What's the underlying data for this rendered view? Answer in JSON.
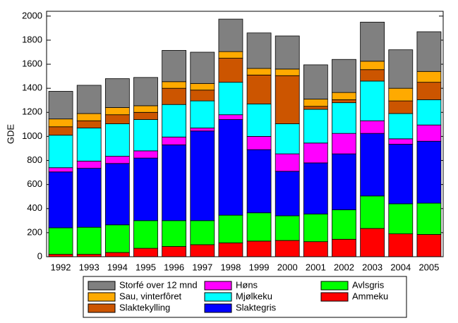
{
  "chart_data": {
    "type": "stacked_bar",
    "y_label": "GDE",
    "categories": [
      "1992",
      "1993",
      "1994",
      "1995",
      "1996",
      "1997",
      "1998",
      "1999",
      "2000",
      "2001",
      "2002",
      "2003",
      "2004",
      "2005"
    ],
    "series": [
      {
        "name": "Ammeku",
        "color": "#ff0000",
        "values": [
          20,
          20,
          35,
          70,
          85,
          100,
          115,
          130,
          135,
          125,
          145,
          235,
          190,
          185
        ]
      },
      {
        "name": "Avlsgris",
        "color": "#00ff00",
        "values": [
          220,
          225,
          230,
          230,
          215,
          200,
          230,
          235,
          205,
          230,
          245,
          270,
          250,
          260
        ]
      },
      {
        "name": "Slaktegris",
        "color": "#0000ff",
        "values": [
          465,
          490,
          510,
          520,
          630,
          745,
          795,
          525,
          370,
          425,
          465,
          520,
          495,
          515
        ]
      },
      {
        "name": "Høns",
        "color": "#ff00ff",
        "values": [
          35,
          60,
          60,
          60,
          65,
          25,
          40,
          110,
          145,
          165,
          170,
          105,
          45,
          135
        ]
      },
      {
        "name": "Mjølkeku",
        "color": "#00ffff",
        "values": [
          270,
          275,
          270,
          260,
          270,
          225,
          270,
          270,
          250,
          280,
          255,
          330,
          210,
          210
        ]
      },
      {
        "name": "Slaktekylling",
        "color": "#cc5500",
        "values": [
          70,
          60,
          75,
          60,
          135,
          90,
          200,
          240,
          400,
          25,
          25,
          95,
          105,
          145
        ]
      },
      {
        "name": "Sau, vinterfôret",
        "color": "#ffaa00",
        "values": [
          65,
          60,
          60,
          55,
          55,
          55,
          55,
          55,
          55,
          60,
          60,
          70,
          105,
          90
        ]
      },
      {
        "name": "Storfé over 12 mnd",
        "color": "#808080",
        "values": [
          230,
          235,
          240,
          235,
          260,
          260,
          270,
          295,
          275,
          285,
          275,
          325,
          320,
          330
        ]
      }
    ],
    "ylim": [
      0,
      2040
    ],
    "yticks": [
      0,
      200,
      400,
      600,
      800,
      1000,
      1200,
      1400,
      1600,
      1800,
      2000
    ]
  }
}
